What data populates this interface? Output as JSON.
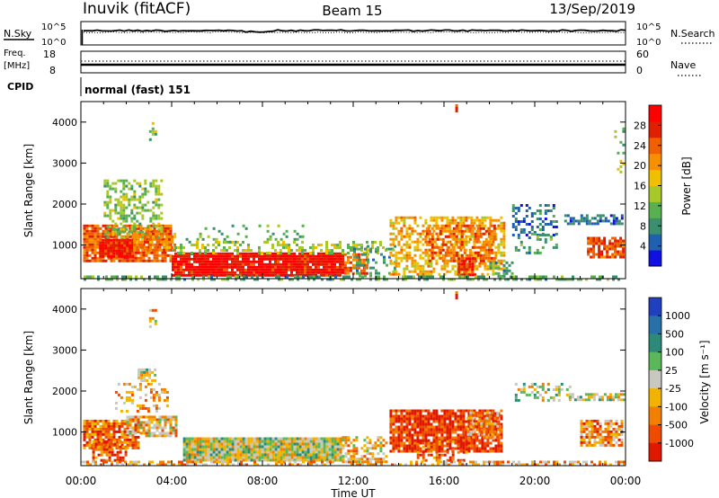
{
  "header": {
    "station": "Inuvik (fitACF)",
    "beam": "Beam 15",
    "date": "13/Sep/2019"
  },
  "top_panels": {
    "nsky_label": "N.Sky",
    "nsky_ticks": [
      "10^5",
      "10^0"
    ],
    "nsearch_label": "N.Search",
    "nsearch_ticks": [
      "10^5",
      "10^0"
    ],
    "freq_label": "Freq.",
    "freq_unit": "[MHz]",
    "freq_ticks": [
      "18",
      "8"
    ],
    "nave_label": "Nave",
    "nave_ticks": [
      "60",
      "0"
    ],
    "cpid_label": "CPID",
    "cpid_value": "normal (fast) 151"
  },
  "chart_data": [
    {
      "type": "heatmap",
      "title": "",
      "quantity": "power",
      "xlabel": "",
      "ylabel": "Slant Range [km]",
      "x_ticks": [
        "00:00",
        "04:00",
        "08:00",
        "12:00",
        "16:00",
        "20:00",
        "00:00"
      ],
      "xlim_hours": [
        0,
        24
      ],
      "ylim_km": [
        180,
        4500
      ],
      "y_ticks": [
        1000,
        2000,
        3000,
        4000
      ],
      "colorbar": {
        "label": "Power [dB]",
        "ticks": [
          4,
          8,
          12,
          16,
          20,
          24,
          28
        ],
        "range": [
          0,
          32
        ],
        "colors": [
          "#1010e0",
          "#2060b0",
          "#3b8e6e",
          "#58b050",
          "#a8c82a",
          "#f0c000",
          "#f79000",
          "#f06000",
          "#e02000",
          "#ff0000"
        ]
      },
      "regions": [
        {
          "t": [
            0.1,
            4.0
          ],
          "r": [
            600,
            1500
          ],
          "v": 24,
          "d": 0.85
        },
        {
          "t": [
            0.8,
            2.3
          ],
          "r": [
            750,
            1150
          ],
          "v": 29,
          "d": 0.95
        },
        {
          "t": [
            1.0,
            3.5
          ],
          "r": [
            1200,
            2600
          ],
          "v": 13,
          "d": 0.45
        },
        {
          "t": [
            2.3,
            4.1
          ],
          "r": [
            900,
            1300
          ],
          "v": 22,
          "d": 0.6
        },
        {
          "t": [
            4.0,
            11.6
          ],
          "r": [
            250,
            820
          ],
          "v": 29,
          "d": 0.95
        },
        {
          "t": [
            11.6,
            12.6
          ],
          "r": [
            300,
            800
          ],
          "v": 24,
          "d": 0.7
        },
        {
          "t": [
            4.0,
            13.5
          ],
          "r": [
            800,
            1100
          ],
          "v": 14,
          "d": 0.35
        },
        {
          "t": [
            4.5,
            10.0
          ],
          "r": [
            1100,
            1500
          ],
          "v": 11,
          "d": 0.12
        },
        {
          "t": [
            12.0,
            13.8
          ],
          "r": [
            250,
            1000
          ],
          "v": 9,
          "d": 0.25
        },
        {
          "t": [
            13.6,
            18.6
          ],
          "r": [
            300,
            1700
          ],
          "v": 19,
          "d": 0.55
        },
        {
          "t": [
            15.2,
            18.2
          ],
          "r": [
            600,
            1500
          ],
          "v": 24,
          "d": 0.5
        },
        {
          "t": [
            16.6,
            17.4
          ],
          "r": [
            250,
            700
          ],
          "v": 28,
          "d": 0.8
        },
        {
          "t": [
            18.0,
            19.0
          ],
          "r": [
            250,
            600
          ],
          "v": 10,
          "d": 0.5
        },
        {
          "t": [
            19.0,
            21.0
          ],
          "r": [
            1200,
            2000
          ],
          "v": 6,
          "d": 0.35
        },
        {
          "t": [
            19.0,
            21.0
          ],
          "r": [
            800,
            1300
          ],
          "v": 10,
          "d": 0.2
        },
        {
          "t": [
            21.3,
            23.9
          ],
          "r": [
            1550,
            1750
          ],
          "v": 6,
          "d": 0.6
        },
        {
          "t": [
            22.3,
            23.9
          ],
          "r": [
            700,
            1200
          ],
          "v": 25,
          "d": 0.75
        },
        {
          "t": [
            0,
            24
          ],
          "r": [
            180,
            260
          ],
          "v": 10,
          "d": 0.5
        },
        {
          "t": [
            3.0,
            3.3
          ],
          "r": [
            3600,
            4000
          ],
          "v": 13,
          "d": 0.35
        },
        {
          "t": [
            16.5,
            16.6
          ],
          "r": [
            4300,
            4500
          ],
          "v": 29,
          "d": 0.9
        },
        {
          "t": [
            23.5,
            23.9
          ],
          "r": [
            2800,
            4000
          ],
          "v": 13,
          "d": 0.15
        }
      ]
    },
    {
      "type": "heatmap",
      "title": "",
      "quantity": "velocity",
      "xlabel": "Time UT",
      "ylabel": "Slant Range [km]",
      "x_ticks": [
        "00:00",
        "04:00",
        "08:00",
        "12:00",
        "16:00",
        "20:00",
        "00:00"
      ],
      "xlim_hours": [
        0,
        24
      ],
      "ylim_km": [
        180,
        4500
      ],
      "y_ticks": [
        1000,
        2000,
        3000,
        4000
      ],
      "colorbar": {
        "label": "Velocity [m s⁻¹]",
        "ticks": [
          "1000",
          "500",
          "100",
          "25",
          "-25",
          "-100",
          "-500",
          "-1000"
        ],
        "colors": [
          "#2040c0",
          "#2870a8",
          "#2e8a78",
          "#5ab85a",
          "#c8c8c0",
          "#f2b300",
          "#f28000",
          "#ee4a00",
          "#e01800"
        ]
      },
      "regions": [
        {
          "t": [
            0.1,
            2.5
          ],
          "r": [
            600,
            1300
          ],
          "v": -5,
          "d": 0.85
        },
        {
          "t": [
            0.5,
            2.0
          ],
          "r": [
            300,
            800
          ],
          "v": -6,
          "d": 0.6
        },
        {
          "t": [
            2.0,
            4.2
          ],
          "r": [
            900,
            1400
          ],
          "v": -2,
          "d": 0.75
        },
        {
          "t": [
            2.5,
            3.3
          ],
          "r": [
            2250,
            2550
          ],
          "v": 0,
          "d": 0.8
        },
        {
          "t": [
            1.5,
            3.8
          ],
          "r": [
            1500,
            2200
          ],
          "v": -3,
          "d": 0.35
        },
        {
          "t": [
            4.5,
            11.5
          ],
          "r": [
            320,
            870
          ],
          "v": 0,
          "d": 1.0
        },
        {
          "t": [
            11.5,
            13.5
          ],
          "r": [
            300,
            900
          ],
          "v": -2,
          "d": 0.5
        },
        {
          "t": [
            13.6,
            18.5
          ],
          "r": [
            500,
            1550
          ],
          "v": -7,
          "d": 0.85
        },
        {
          "t": [
            14.8,
            17.0
          ],
          "r": [
            300,
            800
          ],
          "v": -6,
          "d": 0.5
        },
        {
          "t": [
            17.0,
            18.5
          ],
          "r": [
            900,
            1500
          ],
          "v": -3,
          "d": 0.6
        },
        {
          "t": [
            19.0,
            21.5
          ],
          "r": [
            1800,
            2200
          ],
          "v": 0,
          "d": 0.4
        },
        {
          "t": [
            21.5,
            23.9
          ],
          "r": [
            1800,
            1950
          ],
          "v": 0,
          "d": 0.7
        },
        {
          "t": [
            22.0,
            23.9
          ],
          "r": [
            700,
            1300
          ],
          "v": -4,
          "d": 0.8
        },
        {
          "t": [
            0,
            24
          ],
          "r": [
            180,
            300
          ],
          "v": -3,
          "d": 0.5
        },
        {
          "t": [
            3.0,
            3.3
          ],
          "r": [
            3600,
            4000
          ],
          "v": -2,
          "d": 0.35
        },
        {
          "t": [
            16.5,
            16.6
          ],
          "r": [
            4300,
            4500
          ],
          "v": -6,
          "d": 0.9
        }
      ]
    }
  ]
}
